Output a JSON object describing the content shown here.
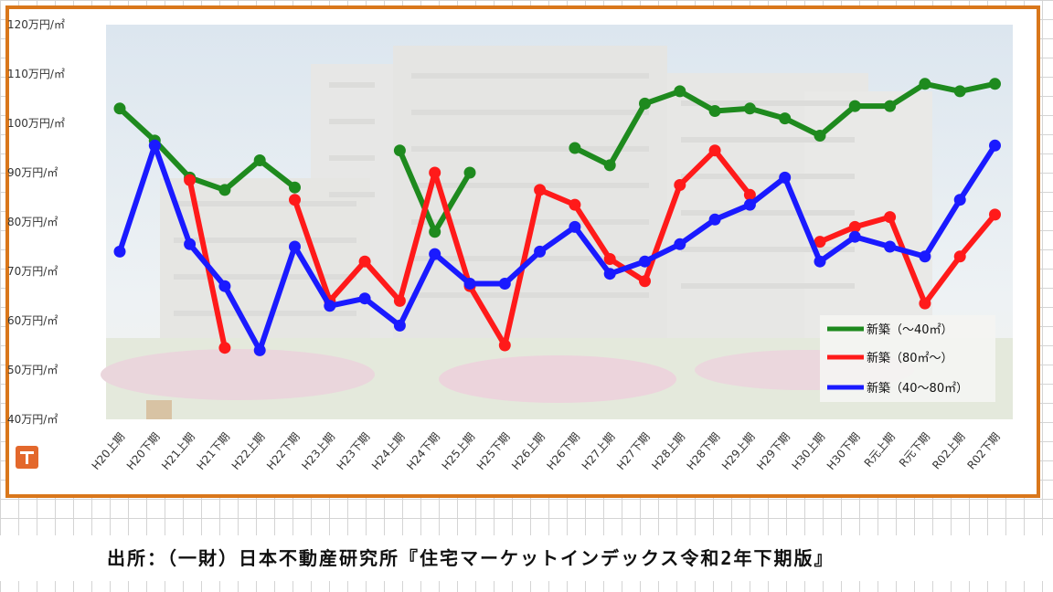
{
  "chart_data": {
    "type": "line",
    "title": "",
    "xlabel": "",
    "ylabel": "",
    "ylim": [
      40,
      120
    ],
    "y_ticks": [
      40,
      50,
      60,
      70,
      80,
      90,
      100,
      110,
      120
    ],
    "y_tick_labels": [
      "40万円/㎡",
      "50万円/㎡",
      "60万円/㎡",
      "70万円/㎡",
      "80万円/㎡",
      "90万円/㎡",
      "100万円/㎡",
      "110万円/㎡",
      "120万円/㎡"
    ],
    "categories": [
      "H20上期",
      "H20下期",
      "H21上期",
      "H21下期",
      "H22上期",
      "H22下期",
      "H23上期",
      "H23下期",
      "H24上期",
      "H24下期",
      "H25上期",
      "H25下期",
      "H26上期",
      "H26下期",
      "H27上期",
      "H27下期",
      "H28上期",
      "H28下期",
      "H29上期",
      "H29下期",
      "H30上期",
      "H30下期",
      "R元上期",
      "R元下期",
      "R02上期",
      "R02下期"
    ],
    "series": [
      {
        "name": "新築（～40㎡）",
        "color": "#1e8a1e",
        "values": [
          103,
          96.5,
          89,
          86.5,
          92.5,
          87,
          null,
          null,
          94.5,
          78,
          90,
          null,
          null,
          95,
          91.5,
          104,
          106.5,
          102.5,
          103,
          101,
          97.5,
          103.5,
          103.5,
          108,
          106.5,
          108
        ]
      },
      {
        "name": "新築（80㎡～）",
        "color": "#ff1a1a",
        "values": [
          null,
          null,
          88.5,
          54.5,
          null,
          84.5,
          64,
          72,
          64,
          90,
          67,
          55,
          86.5,
          83.5,
          72.5,
          68,
          87.5,
          94.5,
          85.5,
          null,
          76,
          79,
          81,
          63.5,
          73,
          81.5
        ]
      },
      {
        "name": "新築（40～80㎡）",
        "color": "#1a1aff",
        "values": [
          74,
          95.5,
          75.5,
          67,
          54,
          75,
          63,
          64.5,
          59,
          73.5,
          67.5,
          67.5,
          74,
          79,
          69.5,
          72,
          75.5,
          80.5,
          83.5,
          89,
          72,
          77,
          75,
          73,
          84.5,
          95.5
        ]
      }
    ],
    "grid": false,
    "legend_position": "bottom-right"
  },
  "footer": {
    "source": "出所：（一財）日本不動産研究所『住宅マーケットインデックス令和2年下期版』"
  },
  "badge": {
    "icon": "shin-badge-icon",
    "color": "#e3682c"
  }
}
